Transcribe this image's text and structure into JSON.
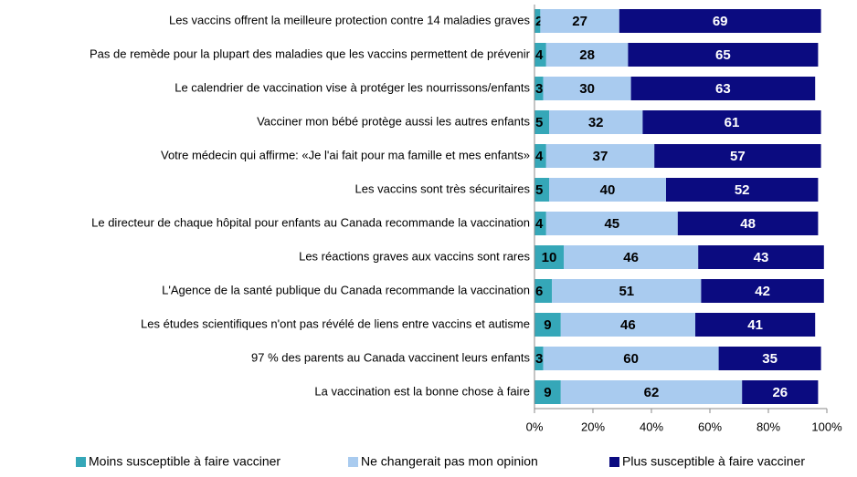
{
  "chart_data": {
    "type": "stacked_barh",
    "categories": [
      "Les vaccins offrent la meilleure protection contre 14 maladies graves",
      "Pas de remède pour la plupart des maladies que les vaccins permettent de prévenir",
      "Le calendrier de vaccination vise à protéger les nourrissons/enfants",
      "Vacciner mon bébé protège aussi les autres enfants",
      "Votre médecin qui affirme: «Je l'ai fait pour ma famille et mes enfants»",
      "Les vaccins sont très sécuritaires",
      "Le directeur de chaque hôpital pour enfants au Canada recommande la vaccination",
      "Les réactions graves aux vaccins sont rares",
      "L'Agence de la santé publique du Canada recommande la vaccination",
      "Les études scientifiques n'ont pas révélé de liens entre vaccins et autisme",
      "97 % des parents au Canada vaccinent leurs enfants",
      "La vaccination est la bonne chose à faire"
    ],
    "series": [
      {
        "name": "Moins susceptible à faire vacciner",
        "color": "#35a7b8",
        "values": [
          2,
          4,
          3,
          5,
          4,
          5,
          4,
          10,
          6,
          9,
          3,
          9
        ]
      },
      {
        "name": "Ne changerait pas mon opinion",
        "color": "#a9cbef",
        "values": [
          27,
          28,
          30,
          32,
          37,
          40,
          45,
          46,
          51,
          46,
          60,
          62
        ]
      },
      {
        "name": "Plus susceptible à faire vacciner",
        "color": "#0b0b80",
        "values": [
          69,
          65,
          63,
          61,
          57,
          52,
          48,
          43,
          42,
          41,
          35,
          26
        ]
      }
    ],
    "xlim": [
      0,
      100
    ],
    "xticks": [
      {
        "value": 0,
        "label": "0%"
      },
      {
        "value": 20,
        "label": "20%"
      },
      {
        "value": 40,
        "label": "40%"
      },
      {
        "value": 60,
        "label": "60%"
      },
      {
        "value": 80,
        "label": "80%"
      },
      {
        "value": 100,
        "label": "100%"
      }
    ],
    "legend": "bottom"
  }
}
